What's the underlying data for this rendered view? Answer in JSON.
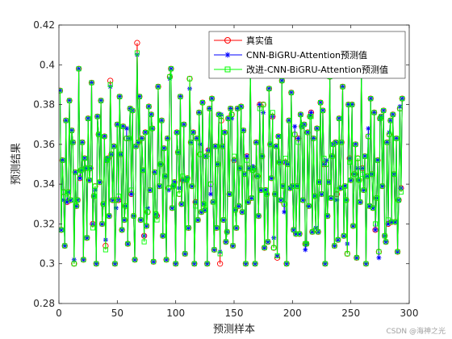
{
  "chart_data": {
    "type": "line",
    "title": "",
    "xlabel": "预测样本",
    "ylabel": "预测结果",
    "xlim": [
      0,
      300
    ],
    "ylim": [
      0.28,
      0.42
    ],
    "x_ticks": [
      "0",
      "50",
      "100",
      "150",
      "200",
      "250",
      "300"
    ],
    "y_ticks": [
      "0.28",
      "0.3",
      "0.32",
      "0.34",
      "0.36",
      "0.38",
      "0.4",
      "0.42"
    ],
    "legend_position": "top-right",
    "grid": false,
    "sample_count": 294,
    "series": [
      {
        "name": "真实值",
        "color": "#ff0000",
        "marker": "circle"
      },
      {
        "name": "CNN-BiGRU-Attention预测值",
        "color": "#0000ff",
        "marker": "asterisk"
      },
      {
        "name": "改进-CNN-BiGRU-Attention预测值",
        "color": "#00ff00",
        "marker": "square"
      }
    ]
  },
  "watermark": "CSDN @海神之光"
}
